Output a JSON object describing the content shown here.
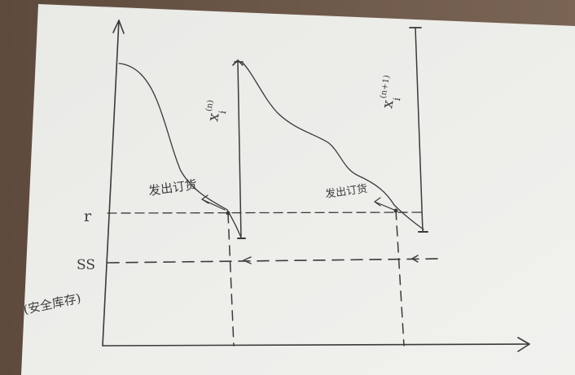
{
  "diagram": {
    "labels": {
      "reorder_point": "r",
      "safety_stock": "SS",
      "safety_stock_note": "(安全库存)",
      "order_point_1": "发出订货",
      "order_point_2": "发出订货",
      "stock_level_1_base": "x",
      "stock_level_1_sub": "i",
      "stock_level_1_sup": "(n)",
      "stock_level_2_base": "x",
      "stock_level_2_sub": "i",
      "stock_level_2_sup": "(n+1)"
    },
    "colors": {
      "ink": "#3a3a3a",
      "paper": "#eeeeeb",
      "desk": "#6f5a4b"
    }
  }
}
